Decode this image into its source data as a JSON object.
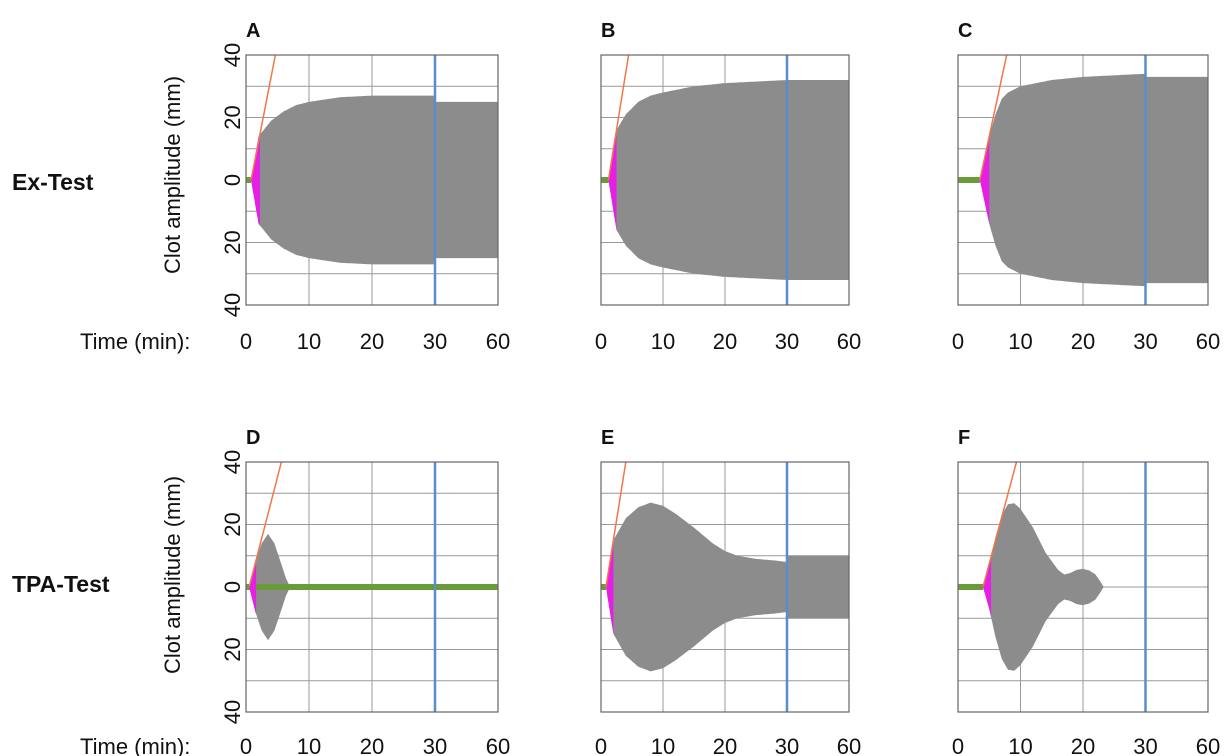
{
  "figure": {
    "x_axis_label": "Time (min):",
    "y_axis_label": "Clot amplitude (mm)"
  },
  "rows": [
    {
      "label": "Ex-Test",
      "panels": [
        "A",
        "B",
        "C"
      ]
    },
    {
      "label": "TPA-Test",
      "panels": [
        "D",
        "E",
        "F"
      ]
    }
  ],
  "colors": {
    "trace": "#8c8c8c",
    "early_trace": "#e61ee6",
    "baseline": "#6a9a3a",
    "slope_line": "#f07848",
    "marker_line": "#5b8bd0",
    "grid": "#999999"
  },
  "chart_data": [
    {
      "panel": "A",
      "type": "area",
      "row": "Ex-Test",
      "x_tick_labels": [
        "0",
        "10",
        "20",
        "30",
        "60"
      ],
      "y_tick_labels": [
        "40",
        "20",
        "0",
        "20",
        "40"
      ],
      "ylim": [
        -40,
        40
      ],
      "marker_time": 30,
      "amplitude_profile": {
        "x": [
          0,
          0.8,
          2,
          4,
          6,
          8,
          10,
          15,
          20,
          25,
          30,
          30.1,
          60
        ],
        "y": [
          0,
          0,
          14,
          19,
          22,
          24,
          25,
          26.5,
          27,
          27,
          27,
          25,
          25
        ]
      },
      "early_interval": [
        0.8,
        2.2
      ],
      "baseline_interval": [
        0,
        0.8
      ]
    },
    {
      "panel": "B",
      "type": "area",
      "row": "Ex-Test",
      "x_tick_labels": [
        "0",
        "10",
        "20",
        "30",
        "60"
      ],
      "y_tick_labels": [],
      "ylim": [
        -40,
        40
      ],
      "marker_time": 30,
      "amplitude_profile": {
        "x": [
          0,
          1.2,
          2.5,
          4,
          6,
          8,
          10,
          15,
          20,
          25,
          30,
          30.1,
          60
        ],
        "y": [
          0,
          0,
          16,
          21,
          25,
          27,
          28,
          30,
          31,
          31.5,
          32,
          32,
          32
        ]
      },
      "early_interval": [
        1.2,
        2.5
      ],
      "baseline_interval": [
        0,
        1.2
      ]
    },
    {
      "panel": "C",
      "type": "area",
      "row": "Ex-Test",
      "x_tick_labels": [
        "0",
        "10",
        "20",
        "30",
        "60"
      ],
      "y_tick_labels": [],
      "ylim": [
        -40,
        40
      ],
      "marker_time": 30,
      "amplitude_profile": {
        "x": [
          0,
          3.5,
          5,
          6,
          7,
          8,
          10,
          15,
          20,
          25,
          30,
          30.1,
          60
        ],
        "y": [
          0,
          0,
          14,
          21,
          26,
          28,
          30,
          32,
          33,
          33.5,
          34,
          33,
          33
        ]
      },
      "early_interval": [
        3.5,
        5
      ],
      "baseline_interval": [
        0,
        3.5
      ]
    },
    {
      "panel": "D",
      "type": "area",
      "row": "TPA-Test",
      "x_tick_labels": [
        "0",
        "10",
        "20",
        "30",
        "60"
      ],
      "y_tick_labels": [
        "40",
        "20",
        "0",
        "20",
        "40"
      ],
      "ylim": [
        -40,
        40
      ],
      "marker_time": 30,
      "amplitude_profile": {
        "x": [
          0,
          0.5,
          1.5,
          2.5,
          3.5,
          4.5,
          5.5,
          6.3,
          7,
          30,
          60
        ],
        "y": [
          0,
          0,
          8,
          14,
          17,
          14,
          8,
          3,
          0,
          0,
          0
        ]
      },
      "early_interval": [
        0.5,
        1.6
      ],
      "baseline_interval": [
        0,
        60
      ]
    },
    {
      "panel": "E",
      "type": "area",
      "row": "TPA-Test",
      "x_tick_labels": [
        "0",
        "10",
        "20",
        "30",
        "60"
      ],
      "y_tick_labels": [],
      "ylim": [
        -40,
        40
      ],
      "marker_time": 30,
      "amplitude_profile": {
        "x": [
          0,
          0.8,
          2,
          4,
          6,
          8,
          10,
          12,
          15,
          18,
          20,
          22,
          25,
          28,
          30,
          30.1,
          60
        ],
        "y": [
          0,
          0,
          15,
          22,
          25.5,
          27,
          26,
          23.5,
          19,
          14,
          11.5,
          10,
          9,
          8.5,
          8,
          10,
          10
        ]
      },
      "early_interval": [
        0.8,
        2
      ],
      "baseline_interval": [
        0,
        0.8
      ]
    },
    {
      "panel": "F",
      "type": "area",
      "row": "TPA-Test",
      "x_tick_labels": [
        "0",
        "10",
        "20",
        "30",
        "60"
      ],
      "y_tick_labels": [],
      "ylim": [
        -40,
        40
      ],
      "marker_time": 30,
      "amplitude_profile": {
        "x": [
          0,
          4,
          5,
          6,
          7,
          8,
          9,
          10,
          12,
          14,
          16,
          17,
          18,
          19,
          20,
          21,
          22,
          22.7,
          23.3,
          30,
          60
        ],
        "y": [
          0,
          0,
          7,
          16,
          23,
          26.5,
          26.8,
          25,
          19,
          11,
          5.5,
          4,
          4.5,
          5.5,
          5.8,
          5.3,
          4,
          2,
          0,
          0,
          0
        ]
      },
      "early_interval": [
        4,
        5.3
      ],
      "baseline_interval": [
        0,
        4
      ]
    }
  ]
}
